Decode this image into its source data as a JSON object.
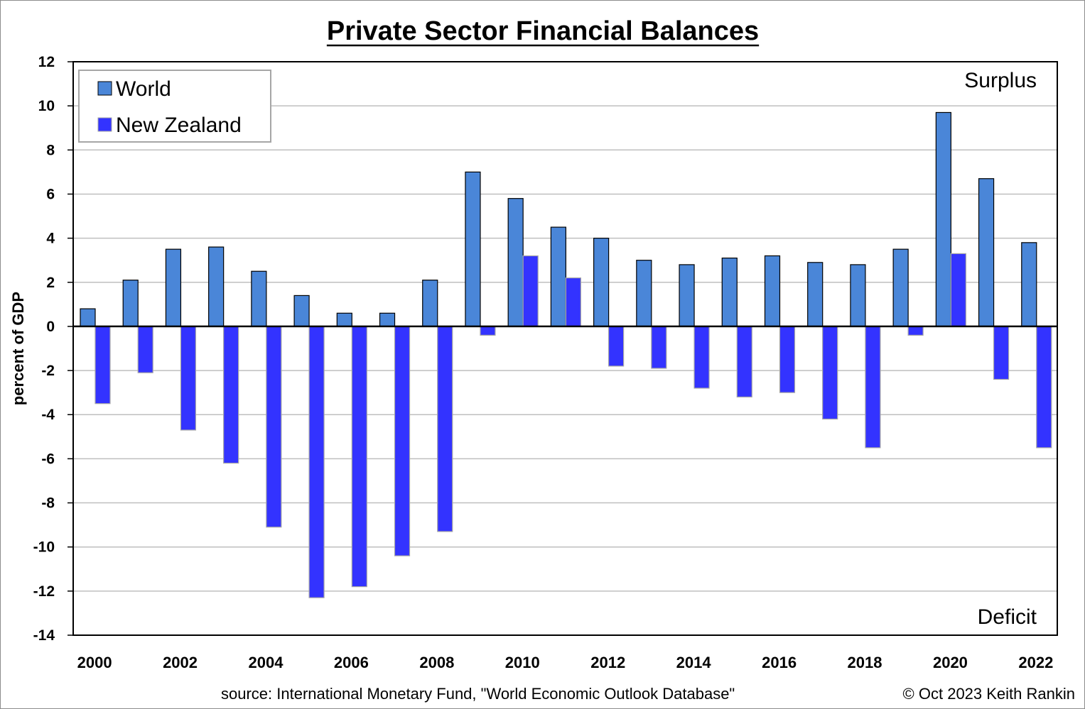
{
  "chart_data": {
    "type": "bar",
    "title": "Private Sector Financial Balances",
    "ylabel": "percent of GDP",
    "xlabel": "",
    "ylim": [
      -14,
      12
    ],
    "yticks": [
      12,
      10,
      8,
      6,
      4,
      2,
      0,
      -2,
      -4,
      -6,
      -8,
      -10,
      -12,
      -14
    ],
    "grid": true,
    "legend_position": "top-left",
    "categories": [
      2000,
      2001,
      2002,
      2003,
      2004,
      2005,
      2006,
      2007,
      2008,
      2009,
      2010,
      2011,
      2012,
      2013,
      2014,
      2015,
      2016,
      2017,
      2018,
      2019,
      2020,
      2021,
      2022
    ],
    "xtick_labels": [
      "2000",
      "",
      "2002",
      "",
      "2004",
      "",
      "2006",
      "",
      "2008",
      "",
      "2010",
      "",
      "2012",
      "",
      "2014",
      "",
      "2016",
      "",
      "2018",
      "",
      "2020",
      "",
      "2022"
    ],
    "series": [
      {
        "name": "World",
        "color": "#4a86d8",
        "values": [
          0.8,
          2.1,
          3.5,
          3.6,
          2.5,
          1.4,
          0.6,
          0.6,
          2.1,
          7.0,
          5.8,
          4.5,
          4.0,
          3.0,
          2.8,
          3.1,
          3.2,
          2.9,
          2.8,
          3.5,
          9.7,
          6.7,
          3.8
        ]
      },
      {
        "name": "New Zealand",
        "color": "#3333ff",
        "values": [
          -3.5,
          -2.1,
          -4.7,
          -6.2,
          -9.1,
          -12.3,
          -11.8,
          -10.4,
          -9.3,
          -0.4,
          3.2,
          2.2,
          -1.8,
          -1.9,
          -2.8,
          -3.2,
          -3.0,
          -4.2,
          -5.5,
          -0.4,
          3.3,
          -2.4,
          -5.5
        ]
      }
    ],
    "annotations": {
      "top_right": "Surplus",
      "bottom_right": "Deficit"
    },
    "source": "source:  International Monetary Fund, \"World Economic Outlook Database\"",
    "credit": "© Oct 2023 Keith Rankin"
  }
}
